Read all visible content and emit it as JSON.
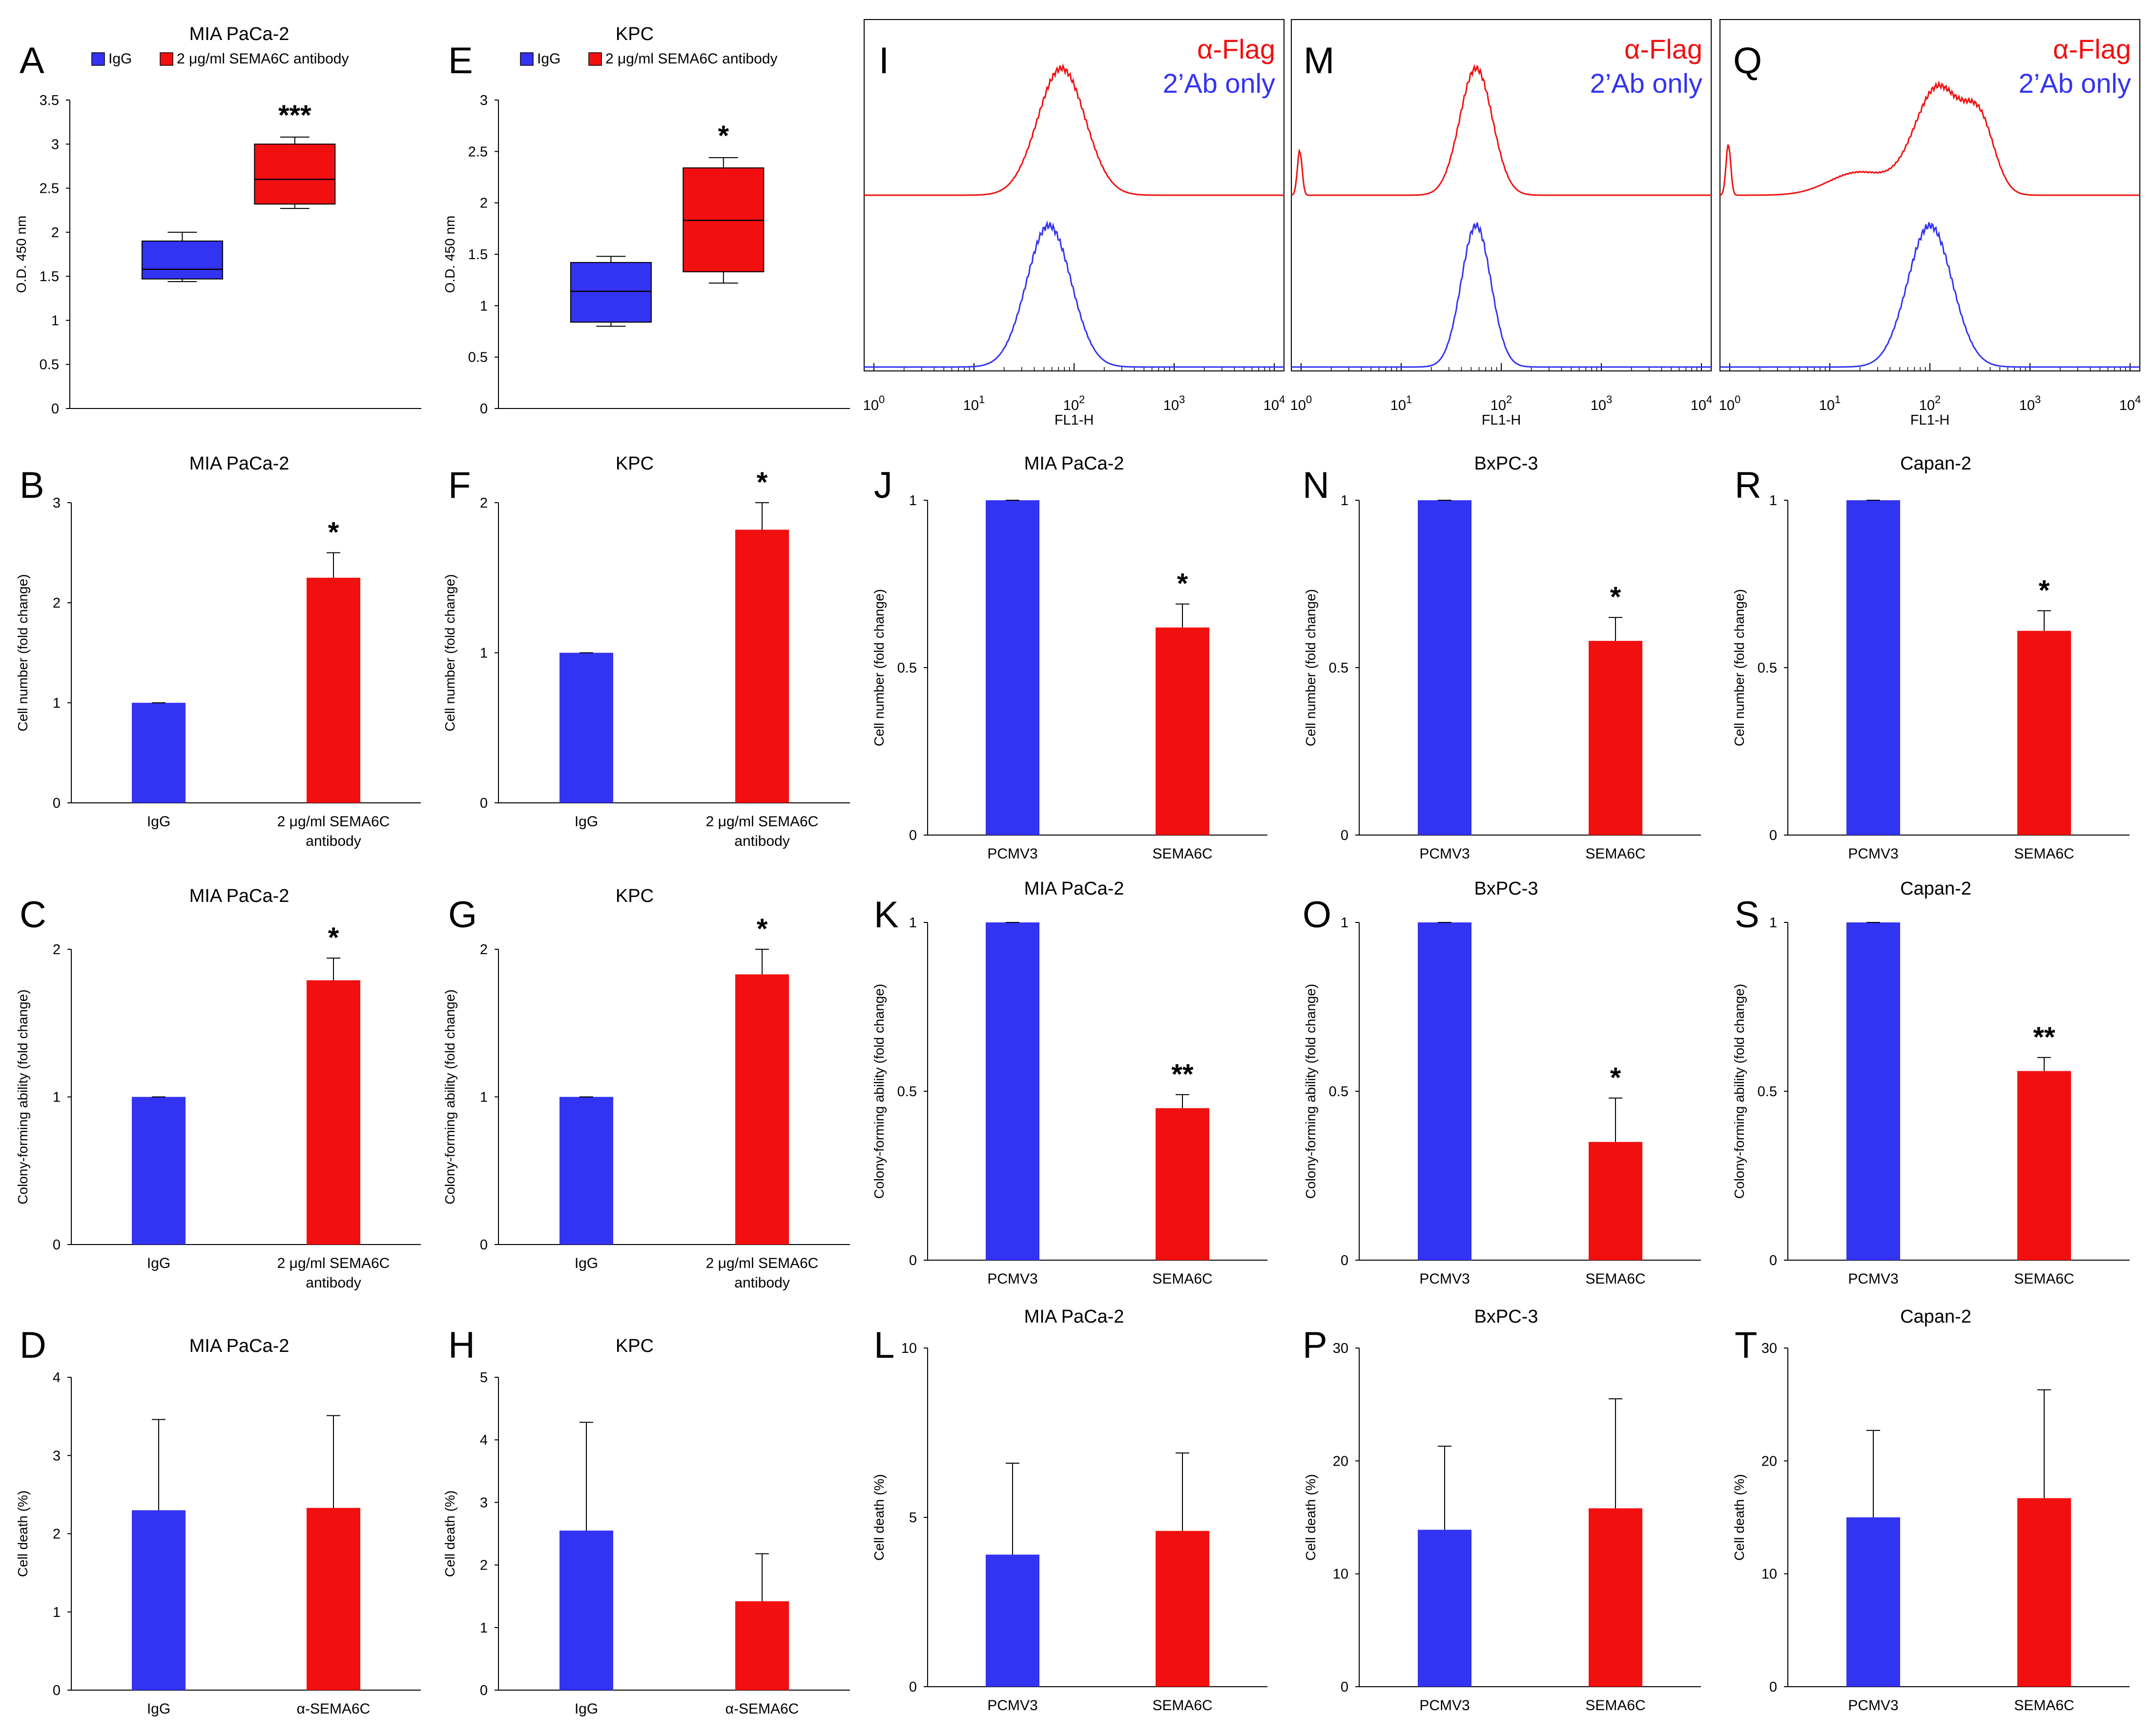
{
  "colors": {
    "blue": "#3333f2",
    "red": "#f20f0f",
    "axis": "#000000"
  },
  "chart_data": [
    {
      "id": "A",
      "type": "box",
      "title": "MIA PaCa-2",
      "ylabel": "O.D. 450 nm",
      "ylim": [
        0,
        3.5
      ],
      "yticks": [
        "0",
        "0.5",
        "1",
        "1.5",
        "2",
        "2.5",
        "3",
        "3.5"
      ],
      "legend": [
        "IgG",
        "2 μg/ml SEMA6C antibody"
      ],
      "boxes": [
        {
          "name": "IgG",
          "min": 1.44,
          "q1": 1.47,
          "median": 1.58,
          "q3": 1.9,
          "max": 2.0,
          "color": "blue"
        },
        {
          "name": "2 μg/ml SEMA6C antibody",
          "min": 2.27,
          "q1": 2.32,
          "median": 2.6,
          "q3": 3.0,
          "max": 3.08,
          "color": "red"
        }
      ],
      "significance": [
        "",
        "***"
      ]
    },
    {
      "id": "E",
      "type": "box",
      "title": "KPC",
      "ylabel": "O.D. 450 nm",
      "ylim": [
        0,
        3
      ],
      "yticks": [
        "0",
        "0.5",
        "1",
        "1.5",
        "2",
        "2.5",
        "3"
      ],
      "legend": [
        "IgG",
        "2 μg/ml SEMA6C antibody"
      ],
      "boxes": [
        {
          "name": "IgG",
          "min": 0.8,
          "q1": 0.84,
          "median": 1.14,
          "q3": 1.42,
          "max": 1.48,
          "color": "blue"
        },
        {
          "name": "2 μg/ml SEMA6C antibody",
          "min": 1.22,
          "q1": 1.33,
          "median": 1.83,
          "q3": 2.34,
          "max": 2.44,
          "color": "red"
        }
      ],
      "significance": [
        "",
        "*"
      ]
    },
    {
      "id": "I",
      "type": "histogram",
      "xlabel": "FL1-H",
      "xticks": [
        "10^0",
        "10^1",
        "10^2",
        "10^3",
        "10^4"
      ],
      "legend": [
        "α-Flag",
        "2’Ab only"
      ]
    },
    {
      "id": "M",
      "type": "histogram",
      "xlabel": "FL1-H",
      "xticks": [
        "10^0",
        "10^1",
        "10^2",
        "10^3",
        "10^4"
      ],
      "legend": [
        "α-Flag",
        "2’Ab only"
      ]
    },
    {
      "id": "Q",
      "type": "histogram",
      "xlabel": "FL1-H",
      "xticks": [
        "10^0",
        "10^1",
        "10^2",
        "10^3",
        "10^4"
      ],
      "legend": [
        "α-Flag",
        "2’Ab only"
      ]
    },
    {
      "id": "B",
      "type": "bar",
      "title": "MIA PaCa-2",
      "ylabel": "Cell number (fold change)",
      "ylim": [
        0,
        3
      ],
      "yticks": [
        "0",
        "1",
        "2",
        "3"
      ],
      "categories": [
        "IgG",
        "2 μg/ml SEMA6C antibody"
      ],
      "values": [
        1.0,
        2.25
      ],
      "errors": [
        0.0,
        0.25
      ],
      "significance": [
        "",
        "*"
      ]
    },
    {
      "id": "F",
      "type": "bar",
      "title": "KPC",
      "ylabel": "Cell number (fold change)",
      "ylim": [
        0,
        2
      ],
      "yticks": [
        "0",
        "1",
        "2"
      ],
      "categories": [
        "IgG",
        "2 μg/ml SEMA6C antibody"
      ],
      "values": [
        1.0,
        1.82
      ],
      "errors": [
        0.0,
        0.18
      ],
      "significance": [
        "",
        "*"
      ]
    },
    {
      "id": "J",
      "type": "bar",
      "title": "MIA PaCa-2",
      "ylabel": "Cell number (fold change)",
      "ylim": [
        0,
        1
      ],
      "yticks": [
        "0",
        "0.5",
        "1"
      ],
      "categories": [
        "PCMV3",
        "SEMA6C"
      ],
      "values": [
        1.0,
        0.62
      ],
      "errors": [
        0.0,
        0.07
      ],
      "significance": [
        "",
        "*"
      ]
    },
    {
      "id": "N",
      "type": "bar",
      "title": "BxPC-3",
      "ylabel": "Cell number (fold change)",
      "ylim": [
        0,
        1
      ],
      "yticks": [
        "0",
        "0.5",
        "1"
      ],
      "categories": [
        "PCMV3",
        "SEMA6C"
      ],
      "values": [
        1.0,
        0.58
      ],
      "errors": [
        0.0,
        0.07
      ],
      "significance": [
        "",
        "*"
      ]
    },
    {
      "id": "R",
      "type": "bar",
      "title": "Capan-2",
      "ylabel": "Cell number (fold change)",
      "ylim": [
        0,
        1
      ],
      "yticks": [
        "0",
        "0.5",
        "1"
      ],
      "categories": [
        "PCMV3",
        "SEMA6C"
      ],
      "values": [
        1.0,
        0.61
      ],
      "errors": [
        0.0,
        0.06
      ],
      "significance": [
        "",
        "*"
      ]
    },
    {
      "id": "C",
      "type": "bar",
      "title": "MIA PaCa-2",
      "ylabel": "Colony-forming ability (fold change)",
      "ylim": [
        0,
        2
      ],
      "yticks": [
        "0",
        "1",
        "2"
      ],
      "categories": [
        "IgG",
        "2 μg/ml SEMA6C antibody"
      ],
      "values": [
        1.0,
        1.79
      ],
      "errors": [
        0.0,
        0.15
      ],
      "significance": [
        "",
        "*"
      ]
    },
    {
      "id": "G",
      "type": "bar",
      "title": "KPC",
      "ylabel": "Colony-forming ability (fold change)",
      "ylim": [
        0,
        2
      ],
      "yticks": [
        "0",
        "1",
        "2"
      ],
      "categories": [
        "IgG",
        "2 μg/ml SEMA6C antibody"
      ],
      "values": [
        1.0,
        1.83
      ],
      "errors": [
        0.0,
        0.17
      ],
      "significance": [
        "",
        "*"
      ]
    },
    {
      "id": "K",
      "type": "bar",
      "title": "MIA PaCa-2",
      "ylabel": "Colony-forming ability (fold change)",
      "ylim": [
        0,
        1
      ],
      "yticks": [
        "0",
        "0.5",
        "1"
      ],
      "categories": [
        "PCMV3",
        "SEMA6C"
      ],
      "values": [
        1.0,
        0.45
      ],
      "errors": [
        0.0,
        0.04
      ],
      "significance": [
        "",
        "**"
      ]
    },
    {
      "id": "O",
      "type": "bar",
      "title": "BxPC-3",
      "ylabel": "Colony-forming ability (fold change)",
      "ylim": [
        0,
        1
      ],
      "yticks": [
        "0",
        "0.5",
        "1"
      ],
      "categories": [
        "PCMV3",
        "SEMA6C"
      ],
      "values": [
        1.0,
        0.35
      ],
      "errors": [
        0.0,
        0.13
      ],
      "significance": [
        "",
        "*"
      ]
    },
    {
      "id": "S",
      "type": "bar",
      "title": "Capan-2",
      "ylabel": "Colony-forming ability (fold change)",
      "ylim": [
        0,
        1
      ],
      "yticks": [
        "0",
        "0.5",
        "1"
      ],
      "categories": [
        "PCMV3",
        "SEMA6C"
      ],
      "values": [
        1.0,
        0.56
      ],
      "errors": [
        0.0,
        0.04
      ],
      "significance": [
        "",
        "**"
      ]
    },
    {
      "id": "D",
      "type": "bar",
      "title": "MIA PaCa-2",
      "ylabel": "Cell death (%)",
      "ylim": [
        0,
        4
      ],
      "yticks": [
        "0",
        "1",
        "2",
        "3",
        "4"
      ],
      "categories": [
        "IgG",
        "α-SEMA6C"
      ],
      "values": [
        2.3,
        2.33
      ],
      "errors": [
        1.16,
        1.18
      ],
      "significance": [
        "",
        ""
      ]
    },
    {
      "id": "H",
      "type": "bar",
      "title": "KPC",
      "ylabel": "Cell death (%)",
      "ylim": [
        0,
        5
      ],
      "yticks": [
        "0",
        "1",
        "2",
        "3",
        "4",
        "5"
      ],
      "categories": [
        "IgG",
        "α-SEMA6C"
      ],
      "values": [
        2.55,
        1.42
      ],
      "errors": [
        1.73,
        0.76
      ],
      "significance": [
        "",
        ""
      ]
    },
    {
      "id": "L",
      "type": "bar",
      "title": "MIA PaCa-2",
      "ylabel": "Cell death (%)",
      "ylim": [
        0,
        10
      ],
      "yticks": [
        "0",
        "5",
        "10"
      ],
      "categories": [
        "PCMV3",
        "SEMA6C"
      ],
      "values": [
        3.9,
        4.6
      ],
      "errors": [
        2.7,
        2.3
      ],
      "significance": [
        "",
        ""
      ]
    },
    {
      "id": "P",
      "type": "bar",
      "title": "BxPC-3",
      "ylabel": "Cell death (%)",
      "ylim": [
        0,
        30
      ],
      "yticks": [
        "0",
        "10",
        "20",
        "30"
      ],
      "categories": [
        "PCMV3",
        "SEMA6C"
      ],
      "values": [
        13.9,
        15.8
      ],
      "errors": [
        7.4,
        9.7
      ],
      "significance": [
        "",
        ""
      ]
    },
    {
      "id": "T",
      "type": "bar",
      "title": "Capan-2",
      "ylabel": "Cell death (%)",
      "ylim": [
        0,
        30
      ],
      "yticks": [
        "0",
        "10",
        "20",
        "30"
      ],
      "categories": [
        "PCMV3",
        "SEMA6C"
      ],
      "values": [
        15.0,
        16.7
      ],
      "errors": [
        7.7,
        9.6
      ],
      "significance": [
        "",
        ""
      ]
    }
  ]
}
